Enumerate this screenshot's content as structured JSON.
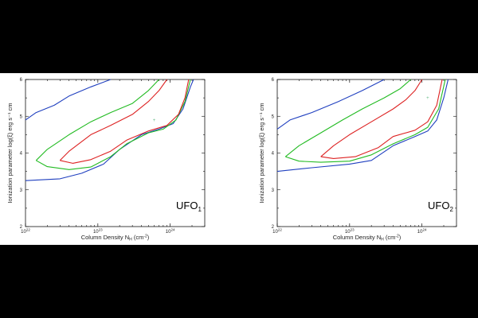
{
  "chart_data": [
    {
      "type": "line",
      "label": "UFO",
      "label_sub": "1",
      "xlabel": "Column Density N",
      "xlabel_sub": "H",
      "xlabel_unit": " (cm",
      "xlabel_unit_sup": "-2",
      "xlabel_close": ")",
      "ylabel": "Ionization parameter log(ξ) erg s⁻¹ cm",
      "x_scale": "log",
      "xlim": [
        1e+22,
        3e+24
      ],
      "ylim": [
        2,
        6
      ],
      "x_ticks": [
        {
          "base": "10",
          "exp": "22",
          "value": 1e+22
        },
        {
          "base": "10",
          "exp": "23",
          "value": 1e+23
        },
        {
          "base": "10",
          "exp": "24",
          "value": 1e+24
        }
      ],
      "y_ticks": [
        2,
        3,
        4,
        5,
        6
      ],
      "best_fit": {
        "x": 6e+23,
        "y": 4.9,
        "marker": "+"
      },
      "series": [
        {
          "color": "#1f3fbf",
          "points": [
            [
              1e+22,
              4.9
            ],
            [
              1.4e+22,
              5.1
            ],
            [
              2.5e+22,
              5.3
            ],
            [
              4e+22,
              5.55
            ],
            [
              8e+22,
              5.8
            ],
            [
              1.5e+23,
              6.0
            ]
          ]
        },
        {
          "color": "#1f3fbf",
          "points": [
            [
              1e+22,
              3.25
            ],
            [
              3e+22,
              3.3
            ],
            [
              6e+22,
              3.45
            ],
            [
              1.2e+23,
              3.7
            ],
            [
              2e+23,
              4.1
            ],
            [
              4e+23,
              4.5
            ],
            [
              7e+23,
              4.65
            ],
            [
              1.1e+24,
              4.8
            ],
            [
              1.5e+24,
              5.2
            ],
            [
              1.9e+24,
              5.8
            ],
            [
              2.1e+24,
              6.0
            ]
          ]
        },
        {
          "color": "#22bb22",
          "points": [
            [
              1.4e+22,
              3.8
            ],
            [
              2e+22,
              4.1
            ],
            [
              4e+22,
              4.5
            ],
            [
              8e+22,
              4.85
            ],
            [
              1.5e+23,
              5.1
            ],
            [
              3e+23,
              5.35
            ],
            [
              5e+23,
              5.7
            ],
            [
              7e+23,
              6.0
            ]
          ]
        },
        {
          "color": "#22bb22",
          "points": [
            [
              1.4e+22,
              3.8
            ],
            [
              2e+22,
              3.63
            ],
            [
              4e+22,
              3.55
            ],
            [
              8e+22,
              3.62
            ],
            [
              1.5e+23,
              3.9
            ],
            [
              2.5e+23,
              4.25
            ],
            [
              5e+23,
              4.55
            ],
            [
              8e+23,
              4.65
            ],
            [
              1.2e+24,
              4.9
            ],
            [
              1.6e+24,
              5.4
            ],
            [
              1.9e+24,
              6.0
            ]
          ]
        },
        {
          "color": "#dd2222",
          "points": [
            [
              3e+22,
              3.8
            ],
            [
              4e+22,
              4.05
            ],
            [
              8e+22,
              4.5
            ],
            [
              1.5e+23,
              4.75
            ],
            [
              3e+23,
              5.05
            ],
            [
              5e+23,
              5.4
            ],
            [
              7e+23,
              5.7
            ],
            [
              9e+23,
              6.0
            ]
          ]
        },
        {
          "color": "#dd2222",
          "points": [
            [
              3e+22,
              3.8
            ],
            [
              4.5e+22,
              3.72
            ],
            [
              8e+22,
              3.82
            ],
            [
              1.5e+23,
              4.05
            ],
            [
              2.5e+23,
              4.35
            ],
            [
              5e+23,
              4.6
            ],
            [
              9e+23,
              4.75
            ],
            [
              1.3e+24,
              5.05
            ],
            [
              1.6e+24,
              5.5
            ],
            [
              1.8e+24,
              6.0
            ]
          ]
        }
      ]
    },
    {
      "type": "line",
      "label": "UFO",
      "label_sub": "2",
      "xlabel": "Column Density N",
      "xlabel_sub": "H",
      "xlabel_unit": " (cm",
      "xlabel_unit_sup": "-2",
      "xlabel_close": ")",
      "ylabel": "Ionization parameter log(ξ) erg s⁻¹ cm",
      "x_scale": "log",
      "xlim": [
        1e+22,
        3e+24
      ],
      "ylim": [
        2,
        6
      ],
      "x_ticks": [
        {
          "base": "10",
          "exp": "22",
          "value": 1e+22
        },
        {
          "base": "10",
          "exp": "23",
          "value": 1e+23
        },
        {
          "base": "10",
          "exp": "24",
          "value": 1e+24
        }
      ],
      "y_ticks": [
        2,
        3,
        4,
        5,
        6
      ],
      "best_fit": {
        "x": 1.2e+24,
        "y": 5.5,
        "marker": "+"
      },
      "series": [
        {
          "color": "#1f3fbf",
          "points": [
            [
              1e+22,
              4.65
            ],
            [
              1.5e+22,
              4.9
            ],
            [
              3e+22,
              5.1
            ],
            [
              7e+22,
              5.4
            ],
            [
              1.5e+23,
              5.7
            ],
            [
              3e+23,
              6.0
            ]
          ]
        },
        {
          "color": "#1f3fbf",
          "points": [
            [
              1e+22,
              3.5
            ],
            [
              3e+22,
              3.6
            ],
            [
              1e+23,
              3.7
            ],
            [
              2e+23,
              3.8
            ],
            [
              4e+23,
              4.2
            ],
            [
              8e+23,
              4.45
            ],
            [
              1.2e+24,
              4.6
            ],
            [
              1.6e+24,
              4.9
            ],
            [
              2e+24,
              5.5
            ],
            [
              2.3e+24,
              6.0
            ]
          ]
        },
        {
          "color": "#22bb22",
          "points": [
            [
              1.3e+22,
              3.9
            ],
            [
              2e+22,
              4.2
            ],
            [
              4e+22,
              4.55
            ],
            [
              8e+22,
              4.9
            ],
            [
              1.5e+23,
              5.2
            ],
            [
              3e+23,
              5.5
            ],
            [
              5e+23,
              5.75
            ],
            [
              7e+23,
              6.0
            ]
          ]
        },
        {
          "color": "#22bb22",
          "points": [
            [
              1.3e+22,
              3.9
            ],
            [
              2e+22,
              3.78
            ],
            [
              4e+22,
              3.75
            ],
            [
              1e+23,
              3.78
            ],
            [
              2e+23,
              3.95
            ],
            [
              4e+23,
              4.25
            ],
            [
              8e+23,
              4.5
            ],
            [
              1.2e+24,
              4.7
            ],
            [
              1.7e+24,
              5.2
            ],
            [
              2.1e+24,
              6.0
            ]
          ]
        },
        {
          "color": "#dd2222",
          "points": [
            [
              4e+22,
              3.9
            ],
            [
              6e+22,
              4.2
            ],
            [
              1e+23,
              4.5
            ],
            [
              2e+23,
              4.85
            ],
            [
              4e+23,
              5.2
            ],
            [
              6e+23,
              5.45
            ],
            [
              8e+23,
              5.7
            ],
            [
              1e+24,
              6.0
            ]
          ]
        },
        {
          "color": "#dd2222",
          "points": [
            [
              4e+22,
              3.9
            ],
            [
              6e+22,
              3.85
            ],
            [
              1.2e+23,
              3.9
            ],
            [
              2.5e+23,
              4.15
            ],
            [
              4e+23,
              4.45
            ],
            [
              8e+23,
              4.62
            ],
            [
              1.2e+24,
              4.85
            ],
            [
              1.6e+24,
              5.3
            ],
            [
              1.9e+24,
              6.0
            ]
          ]
        }
      ]
    }
  ]
}
